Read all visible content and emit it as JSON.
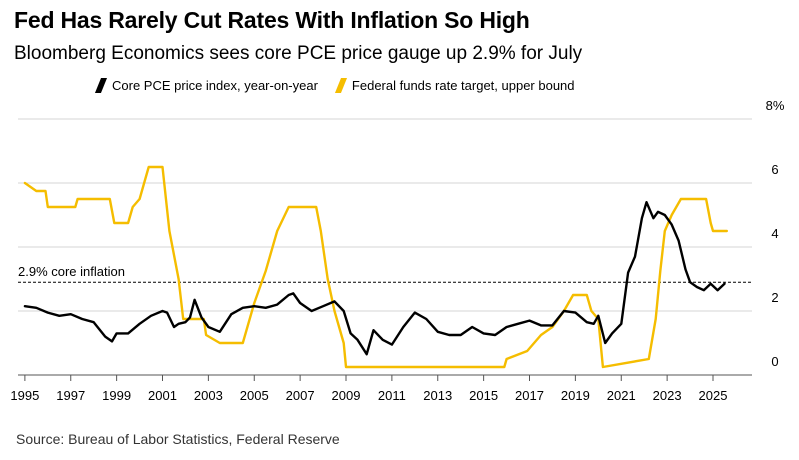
{
  "header": {
    "title": "Fed Has Rarely Cut Rates With Inflation So High",
    "subtitle": "Bloomberg Economics sees core PCE price gauge up 2.9% for July"
  },
  "source": "Source: Bureau of Labor Statistics, Federal Reserve",
  "colors": {
    "pce": "#000000",
    "ffr": "#f5bd00",
    "grid": "#d6d6d6",
    "ref": "#000000"
  },
  "chart_data": {
    "type": "line",
    "title": "Fed Has Rarely Cut Rates With Inflation So High",
    "subtitle": "Bloomberg Economics sees core PCE price gauge up 2.9% for July",
    "xlabel": "",
    "ylabel": "",
    "xlim": [
      1994.7,
      2026.7
    ],
    "ylim": [
      0,
      8
    ],
    "y_axis_side": "right",
    "y_ticks": [
      0,
      2,
      4,
      6,
      8
    ],
    "y_tick_labels": [
      "0",
      "2",
      "4",
      "6",
      "8%"
    ],
    "x_ticks": [
      1995,
      1997,
      1999,
      2001,
      2003,
      2005,
      2007,
      2009,
      2011,
      2013,
      2015,
      2017,
      2019,
      2021,
      2023,
      2025
    ],
    "x_tick_labels": [
      "1995",
      "1997",
      "1999",
      "2001",
      "2003",
      "2005",
      "2007",
      "2009",
      "2011",
      "2013",
      "2015",
      "2017",
      "2019",
      "2021",
      "2023",
      "2025"
    ],
    "grid": true,
    "legend_position": "top",
    "reference_line": {
      "y": 2.9,
      "label": "2.9% core inflation"
    },
    "series": [
      {
        "name": "Core PCE price index, year-on-year",
        "points": [
          [
            1995.0,
            2.15
          ],
          [
            1995.5,
            2.1
          ],
          [
            1996.0,
            1.95
          ],
          [
            1996.5,
            1.85
          ],
          [
            1997.0,
            1.9
          ],
          [
            1997.5,
            1.75
          ],
          [
            1998.0,
            1.65
          ],
          [
            1998.5,
            1.2
          ],
          [
            1998.8,
            1.05
          ],
          [
            1999.0,
            1.3
          ],
          [
            1999.5,
            1.3
          ],
          [
            2000.0,
            1.6
          ],
          [
            2000.5,
            1.85
          ],
          [
            2001.0,
            2.0
          ],
          [
            2001.2,
            1.95
          ],
          [
            2001.5,
            1.5
          ],
          [
            2001.7,
            1.6
          ],
          [
            2002.0,
            1.65
          ],
          [
            2002.2,
            1.8
          ],
          [
            2002.4,
            2.35
          ],
          [
            2002.7,
            1.8
          ],
          [
            2003.0,
            1.5
          ],
          [
            2003.5,
            1.35
          ],
          [
            2004.0,
            1.9
          ],
          [
            2004.5,
            2.1
          ],
          [
            2005.0,
            2.15
          ],
          [
            2005.5,
            2.1
          ],
          [
            2006.0,
            2.2
          ],
          [
            2006.5,
            2.5
          ],
          [
            2006.7,
            2.55
          ],
          [
            2007.0,
            2.25
          ],
          [
            2007.5,
            2.0
          ],
          [
            2008.0,
            2.15
          ],
          [
            2008.5,
            2.3
          ],
          [
            2008.9,
            2.0
          ],
          [
            2009.2,
            1.3
          ],
          [
            2009.5,
            1.1
          ],
          [
            2009.9,
            0.65
          ],
          [
            2010.2,
            1.4
          ],
          [
            2010.6,
            1.1
          ],
          [
            2011.0,
            0.95
          ],
          [
            2011.5,
            1.5
          ],
          [
            2012.0,
            1.95
          ],
          [
            2012.5,
            1.75
          ],
          [
            2013.0,
            1.35
          ],
          [
            2013.5,
            1.25
          ],
          [
            2014.0,
            1.25
          ],
          [
            2014.5,
            1.5
          ],
          [
            2015.0,
            1.3
          ],
          [
            2015.5,
            1.25
          ],
          [
            2016.0,
            1.5
          ],
          [
            2016.5,
            1.6
          ],
          [
            2017.0,
            1.7
          ],
          [
            2017.5,
            1.55
          ],
          [
            2018.0,
            1.55
          ],
          [
            2018.5,
            2.0
          ],
          [
            2019.0,
            1.95
          ],
          [
            2019.5,
            1.65
          ],
          [
            2019.8,
            1.6
          ],
          [
            2020.0,
            1.85
          ],
          [
            2020.3,
            1.0
          ],
          [
            2020.6,
            1.3
          ],
          [
            2021.0,
            1.6
          ],
          [
            2021.3,
            3.2
          ],
          [
            2021.6,
            3.7
          ],
          [
            2021.9,
            4.9
          ],
          [
            2022.1,
            5.4
          ],
          [
            2022.4,
            4.9
          ],
          [
            2022.6,
            5.1
          ],
          [
            2022.9,
            5.0
          ],
          [
            2023.2,
            4.7
          ],
          [
            2023.5,
            4.2
          ],
          [
            2023.8,
            3.3
          ],
          [
            2024.0,
            2.9
          ],
          [
            2024.3,
            2.75
          ],
          [
            2024.6,
            2.65
          ],
          [
            2024.9,
            2.85
          ],
          [
            2025.2,
            2.65
          ],
          [
            2025.5,
            2.85
          ]
        ]
      },
      {
        "name": "Federal funds rate target, upper bound",
        "points": [
          [
            1995.0,
            6.0
          ],
          [
            1995.5,
            5.75
          ],
          [
            1995.9,
            5.75
          ],
          [
            1996.0,
            5.25
          ],
          [
            1997.2,
            5.25
          ],
          [
            1997.3,
            5.5
          ],
          [
            1998.7,
            5.5
          ],
          [
            1998.9,
            4.75
          ],
          [
            1999.5,
            4.75
          ],
          [
            1999.7,
            5.25
          ],
          [
            2000.0,
            5.5
          ],
          [
            2000.4,
            6.5
          ],
          [
            2001.0,
            6.5
          ],
          [
            2001.3,
            4.5
          ],
          [
            2001.7,
            3.0
          ],
          [
            2001.9,
            1.75
          ],
          [
            2002.8,
            1.75
          ],
          [
            2002.9,
            1.25
          ],
          [
            2003.5,
            1.0
          ],
          [
            2004.5,
            1.0
          ],
          [
            2005.0,
            2.25
          ],
          [
            2005.5,
            3.25
          ],
          [
            2006.0,
            4.5
          ],
          [
            2006.5,
            5.25
          ],
          [
            2007.7,
            5.25
          ],
          [
            2007.9,
            4.5
          ],
          [
            2008.2,
            3.0
          ],
          [
            2008.5,
            2.0
          ],
          [
            2008.9,
            1.0
          ],
          [
            2009.0,
            0.25
          ],
          [
            2015.9,
            0.25
          ],
          [
            2016.0,
            0.5
          ],
          [
            2016.9,
            0.75
          ],
          [
            2017.5,
            1.25
          ],
          [
            2018.0,
            1.5
          ],
          [
            2018.5,
            2.0
          ],
          [
            2018.9,
            2.5
          ],
          [
            2019.5,
            2.5
          ],
          [
            2019.7,
            2.0
          ],
          [
            2020.0,
            1.75
          ],
          [
            2020.2,
            0.25
          ],
          [
            2022.2,
            0.5
          ],
          [
            2022.5,
            1.75
          ],
          [
            2022.7,
            3.25
          ],
          [
            2022.9,
            4.5
          ],
          [
            2023.2,
            5.0
          ],
          [
            2023.6,
            5.5
          ],
          [
            2024.7,
            5.5
          ],
          [
            2024.9,
            4.75
          ],
          [
            2025.0,
            4.5
          ],
          [
            2025.6,
            4.5
          ]
        ]
      }
    ]
  }
}
